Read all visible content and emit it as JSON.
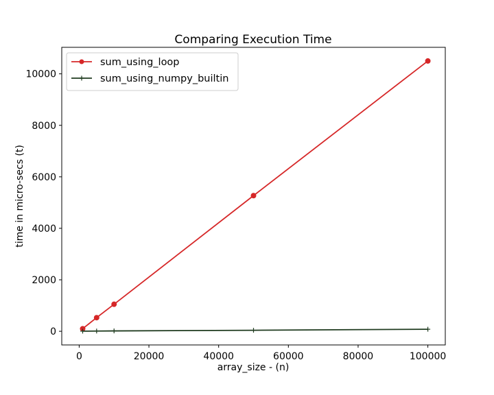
{
  "chart_data": {
    "type": "line",
    "title": "Comparing Execution Time",
    "xlabel": "array_size - (n)",
    "ylabel": "time in micro-secs (t)",
    "xlim": [
      -5000,
      105000
    ],
    "ylim": [
      -530,
      11030
    ],
    "x_ticks": [
      0,
      20000,
      40000,
      60000,
      80000,
      100000
    ],
    "y_ticks": [
      0,
      2000,
      4000,
      6000,
      8000,
      10000
    ],
    "grid": false,
    "legend_position": "top-left",
    "series": [
      {
        "name": "sum_using_loop",
        "color": "#d62728",
        "marker": "circle",
        "x": [
          1000,
          5000,
          10000,
          50000,
          100000
        ],
        "y": [
          100,
          530,
          1050,
          5270,
          10500
        ]
      },
      {
        "name": "sum_using_numpy_builtin",
        "color": "#1e3a1e",
        "marker": "plus",
        "x": [
          1000,
          5000,
          10000,
          50000,
          100000
        ],
        "y": [
          5,
          10,
          15,
          40,
          80
        ]
      }
    ]
  }
}
